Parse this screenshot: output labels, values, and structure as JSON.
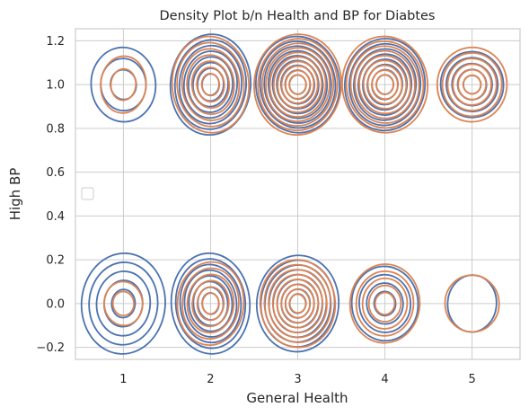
{
  "chart_data": {
    "type": "kde-contour",
    "title": "Density Plot b/n Health and BP for Diabtes",
    "xlabel": "General Health",
    "ylabel": "High BP",
    "xlim": [
      0.45,
      5.55
    ],
    "ylim": [
      -0.255,
      1.255
    ],
    "x_ticks": [
      1,
      2,
      3,
      4,
      5
    ],
    "x_tick_labels": [
      "1",
      "2",
      "3",
      "4",
      "5"
    ],
    "y_ticks": [
      -0.2,
      0.0,
      0.2,
      0.4,
      0.6,
      0.8,
      1.0,
      1.2
    ],
    "y_tick_labels": [
      "−0.2",
      "0.0",
      "0.2",
      "0.4",
      "0.6",
      "0.8",
      "1.0",
      "1.2"
    ],
    "grid": true,
    "legend": {
      "placement": "center-left",
      "entries": []
    },
    "series": [
      {
        "color": "#4c72b0",
        "clusters": [
          {
            "x": 1,
            "y": 0,
            "ring_levels": 5,
            "x_extent": 0.48,
            "y_extent": 0.23
          },
          {
            "x": 2,
            "y": 0,
            "ring_levels": 8,
            "x_extent": 0.45,
            "y_extent": 0.23
          },
          {
            "x": 3,
            "y": 0,
            "ring_levels": 9,
            "x_extent": 0.47,
            "y_extent": 0.22
          },
          {
            "x": 4,
            "y": 0,
            "ring_levels": 4,
            "x_extent": 0.38,
            "y_extent": 0.17
          },
          {
            "x": 5,
            "y": 0,
            "ring_levels": 1,
            "x_extent": 0.28,
            "y_extent": 0.13
          },
          {
            "x": 1,
            "y": 1,
            "ring_levels": 3,
            "x_extent": 0.37,
            "y_extent": 0.17
          },
          {
            "x": 2,
            "y": 1,
            "ring_levels": 8,
            "x_extent": 0.46,
            "y_extent": 0.23
          },
          {
            "x": 3,
            "y": 1,
            "ring_levels": 9,
            "x_extent": 0.48,
            "y_extent": 0.22
          },
          {
            "x": 4,
            "y": 1,
            "ring_levels": 8,
            "x_extent": 0.46,
            "y_extent": 0.21
          },
          {
            "x": 5,
            "y": 1,
            "ring_levels": 5,
            "x_extent": 0.36,
            "y_extent": 0.15
          }
        ]
      },
      {
        "color": "#dd8452",
        "clusters": [
          {
            "x": 1,
            "y": 0,
            "ring_levels": 2,
            "x_extent": 0.22,
            "y_extent": 0.1
          },
          {
            "x": 2,
            "y": 0,
            "ring_levels": 6,
            "x_extent": 0.38,
            "y_extent": 0.19
          },
          {
            "x": 3,
            "y": 0,
            "ring_levels": 8,
            "x_extent": 0.43,
            "y_extent": 0.2
          },
          {
            "x": 4,
            "y": 0,
            "ring_levels": 5,
            "x_extent": 0.4,
            "y_extent": 0.18
          },
          {
            "x": 5,
            "y": 0,
            "ring_levels": 1,
            "x_extent": 0.31,
            "y_extent": 0.13
          },
          {
            "x": 1,
            "y": 1,
            "ring_levels": 2,
            "x_extent": 0.26,
            "y_extent": 0.13
          },
          {
            "x": 2,
            "y": 1,
            "ring_levels": 7,
            "x_extent": 0.44,
            "y_extent": 0.22
          },
          {
            "x": 3,
            "y": 1,
            "ring_levels": 10,
            "x_extent": 0.5,
            "y_extent": 0.23
          },
          {
            "x": 4,
            "y": 1,
            "ring_levels": 9,
            "x_extent": 0.49,
            "y_extent": 0.22
          },
          {
            "x": 5,
            "y": 1,
            "ring_levels": 6,
            "x_extent": 0.4,
            "y_extent": 0.17
          }
        ]
      }
    ]
  }
}
